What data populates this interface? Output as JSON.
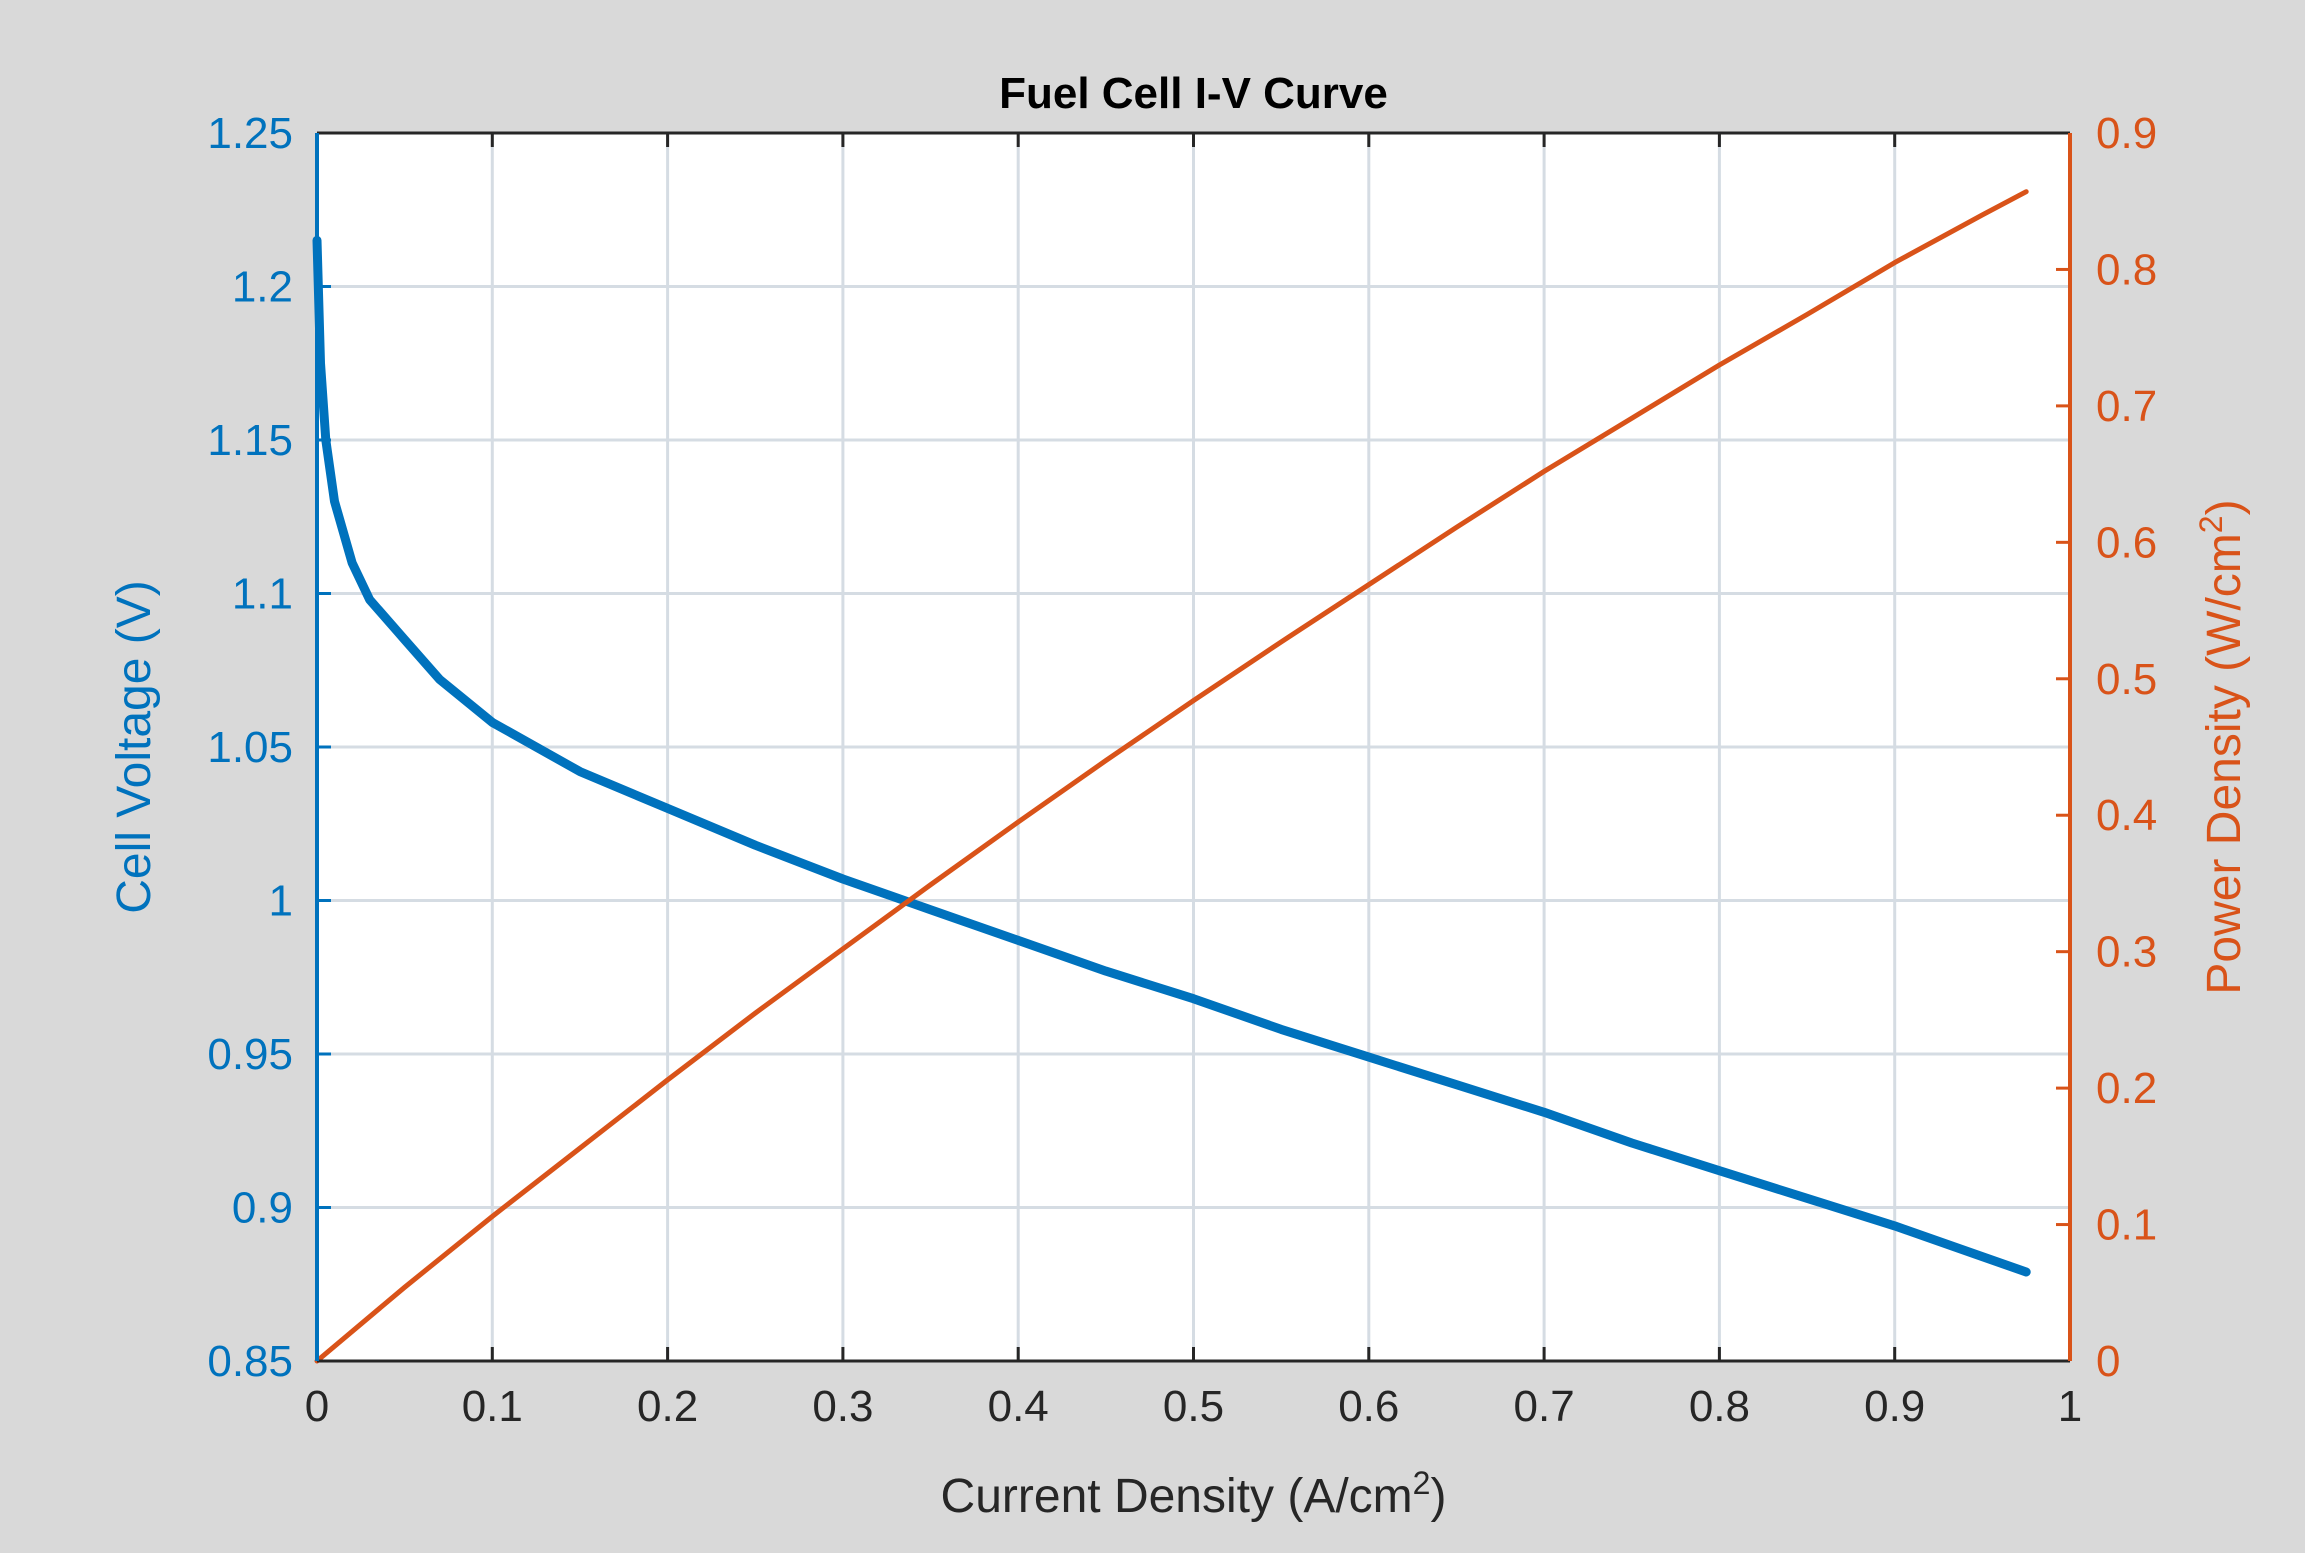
{
  "chart_data": {
    "type": "line",
    "title": "Fuel Cell I-V Curve",
    "xlabel": "Current Density (A/cm",
    "xlabel_sup": "2",
    "xlabel_end": ")",
    "ylabel_left": "Cell Voltage (V)",
    "ylabel_right": "Power Density (W/cm",
    "ylabel_right_sup": "2",
    "ylabel_right_end": ")",
    "xlim": [
      0,
      1
    ],
    "ylim_left": [
      0.85,
      1.25
    ],
    "ylim_right": [
      0,
      0.9
    ],
    "x_ticks": [
      "0",
      "0.1",
      "0.2",
      "0.3",
      "0.4",
      "0.5",
      "0.6",
      "0.7",
      "0.8",
      "0.9",
      "1"
    ],
    "y_left_ticks": [
      "0.85",
      "0.9",
      "0.95",
      "1",
      "1.05",
      "1.1",
      "1.15",
      "1.2",
      "1.25"
    ],
    "y_right_ticks": [
      "0",
      "0.1",
      "0.2",
      "0.3",
      "0.4",
      "0.5",
      "0.6",
      "0.7",
      "0.8",
      "0.9"
    ],
    "grid": true,
    "colors": {
      "voltage": "#0072BD",
      "power": "#D95319",
      "frame_bg": "#D9D9D9",
      "grid": "#D5DCE3"
    },
    "series": [
      {
        "name": "Cell Voltage",
        "axis": "left",
        "x": [
          0.0,
          0.002,
          0.005,
          0.01,
          0.02,
          0.03,
          0.05,
          0.07,
          0.1,
          0.15,
          0.2,
          0.25,
          0.3,
          0.35,
          0.4,
          0.45,
          0.5,
          0.55,
          0.6,
          0.65,
          0.7,
          0.75,
          0.8,
          0.85,
          0.9,
          0.95,
          0.975
        ],
        "values": [
          1.215,
          1.175,
          1.15,
          1.13,
          1.11,
          1.098,
          1.085,
          1.072,
          1.058,
          1.042,
          1.03,
          1.018,
          1.007,
          0.997,
          0.987,
          0.977,
          0.968,
          0.958,
          0.949,
          0.94,
          0.931,
          0.921,
          0.912,
          0.903,
          0.894,
          0.884,
          0.879
        ]
      },
      {
        "name": "Power Density",
        "axis": "right",
        "x": [
          0.0,
          0.05,
          0.1,
          0.15,
          0.2,
          0.25,
          0.3,
          0.35,
          0.4,
          0.45,
          0.5,
          0.55,
          0.6,
          0.65,
          0.7,
          0.75,
          0.8,
          0.85,
          0.9,
          0.95,
          0.975
        ],
        "values": [
          0.0,
          0.054,
          0.106,
          0.156,
          0.206,
          0.255,
          0.302,
          0.349,
          0.395,
          0.44,
          0.484,
          0.527,
          0.569,
          0.611,
          0.652,
          0.691,
          0.73,
          0.767,
          0.805,
          0.84,
          0.857
        ]
      }
    ]
  }
}
